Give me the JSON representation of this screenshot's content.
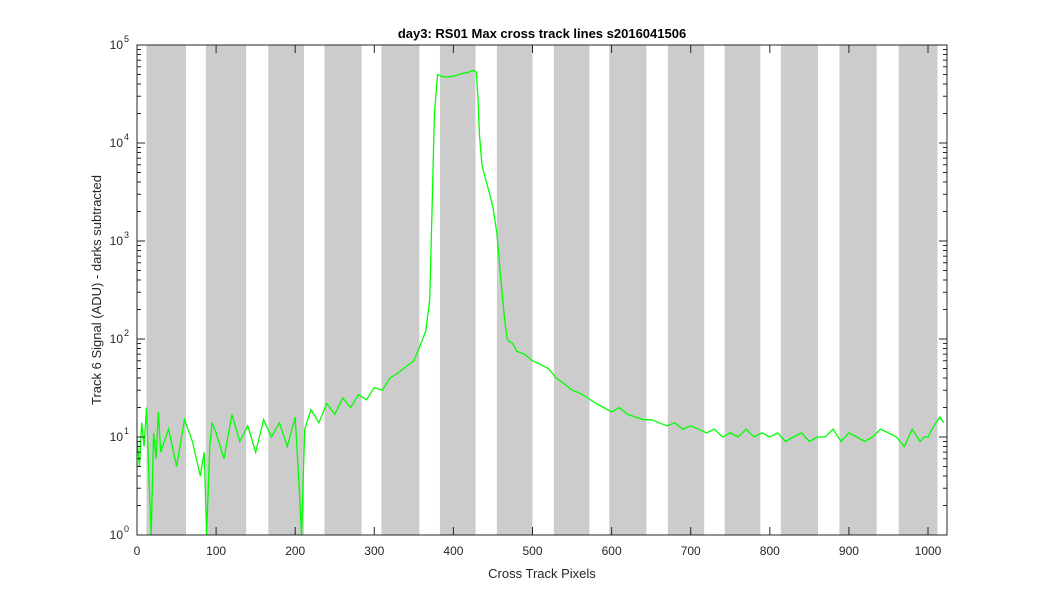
{
  "chart_data": {
    "type": "line",
    "title": "day3: RS01  Max cross track lines  s2016041506",
    "xlabel": "Cross Track Pixels",
    "ylabel": "Track 6 Signal (ADU) - darks subtracted",
    "xlim": [
      0,
      1024
    ],
    "ylim": [
      1,
      100000
    ],
    "yscale": "log",
    "grid": false,
    "legend": "none",
    "xticks": [
      0,
      100,
      200,
      300,
      400,
      500,
      600,
      700,
      800,
      900,
      1000
    ],
    "ytick_labels": [
      {
        "value": 1,
        "base": "10",
        "exp": "0"
      },
      {
        "value": 10,
        "base": "10",
        "exp": "1"
      },
      {
        "value": 100,
        "base": "10",
        "exp": "2"
      },
      {
        "value": 1000,
        "base": "10",
        "exp": "3"
      },
      {
        "value": 10000,
        "base": "10",
        "exp": "4"
      },
      {
        "value": 100000,
        "base": "10",
        "exp": "5"
      }
    ],
    "shaded_bands": [
      [
        12,
        62
      ],
      [
        87,
        138
      ],
      [
        166,
        211
      ],
      [
        237,
        284
      ],
      [
        309,
        357
      ],
      [
        383,
        428
      ],
      [
        455,
        500
      ],
      [
        527,
        572
      ],
      [
        597,
        644
      ],
      [
        671,
        717
      ],
      [
        743,
        788
      ],
      [
        814,
        861
      ],
      [
        888,
        935
      ],
      [
        963,
        1012
      ]
    ],
    "band_color": "#cccccc",
    "line_color": "#00ff00",
    "series": [
      {
        "x": [
          0,
          3,
          6,
          9,
          12,
          15,
          18,
          21,
          24,
          27,
          30,
          40,
          50,
          60,
          70,
          80,
          85,
          88,
          92,
          95,
          100,
          110,
          120,
          130,
          140,
          150,
          160,
          170,
          180,
          190,
          200,
          205,
          208,
          212,
          220,
          230,
          240,
          250,
          260,
          270,
          280,
          290,
          300,
          310,
          320,
          330,
          340,
          350,
          355,
          360,
          365,
          370,
          373,
          376,
          380,
          385,
          390,
          400,
          410,
          420,
          425,
          429,
          431,
          433,
          436,
          440,
          445,
          450,
          455,
          460,
          465,
          468,
          470,
          475,
          480,
          490,
          500,
          510,
          520,
          530,
          540,
          550,
          560,
          570,
          580,
          590,
          600,
          610,
          620,
          630,
          640,
          650,
          660,
          670,
          680,
          690,
          700,
          710,
          720,
          730,
          740,
          750,
          760,
          770,
          780,
          790,
          800,
          810,
          820,
          830,
          840,
          850,
          860,
          870,
          880,
          890,
          900,
          910,
          920,
          930,
          940,
          950,
          960,
          970,
          980,
          990,
          995,
          1000,
          1005,
          1010,
          1015,
          1020
        ],
        "y": [
          10,
          5,
          14,
          8,
          20,
          4,
          1,
          11,
          6,
          18,
          7,
          12,
          5,
          15,
          9,
          4,
          7,
          1,
          8,
          14,
          11,
          6,
          17,
          9,
          13,
          7,
          15,
          10,
          14,
          8,
          16,
          3,
          1,
          12,
          19,
          14,
          22,
          17,
          25,
          20,
          27,
          24,
          32,
          30,
          40,
          45,
          52,
          60,
          75,
          95,
          120,
          250,
          2000,
          20000,
          50000,
          48000,
          47000,
          48000,
          51000,
          53000,
          55000,
          53000,
          30000,
          12000,
          6000,
          4500,
          3200,
          2200,
          1200,
          400,
          150,
          100,
          95,
          90,
          75,
          70,
          60,
          55,
          50,
          40,
          35,
          30,
          28,
          25,
          22,
          20,
          18,
          20,
          17,
          16,
          15,
          15,
          14,
          13,
          14,
          12,
          13,
          12,
          11,
          12,
          10,
          11,
          10,
          12,
          10,
          11,
          10,
          11,
          9,
          10,
          11,
          9,
          10,
          10,
          12,
          9,
          11,
          10,
          9,
          10,
          12,
          11,
          10,
          8,
          12,
          9,
          10,
          10,
          12,
          14,
          16,
          14
        ]
      }
    ]
  }
}
